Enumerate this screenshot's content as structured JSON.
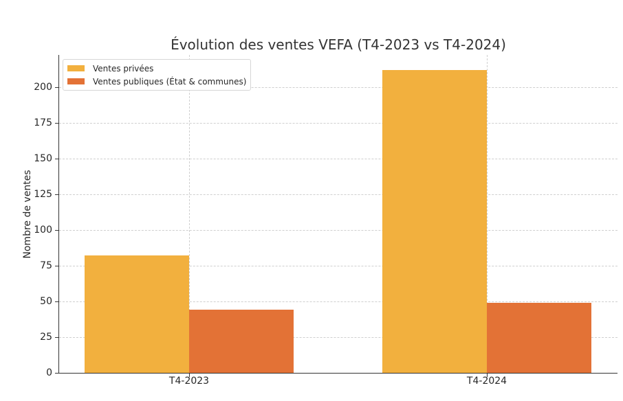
{
  "chart_data": {
    "type": "bar",
    "title": "Évolution des ventes VEFA (T4-2023 vs T4-2024)",
    "xlabel": "",
    "ylabel": "Nombre de ventes",
    "categories": [
      "T4-2023",
      "T4-2024"
    ],
    "series": [
      {
        "name": "Ventes privées",
        "color": "#f2b03e",
        "values": [
          82,
          212
        ]
      },
      {
        "name": "Ventes publiques (État & communes)",
        "color": "#e37236",
        "values": [
          44,
          49
        ]
      }
    ],
    "ylim": [
      0,
      222
    ],
    "yticks": [
      0,
      25,
      50,
      75,
      100,
      125,
      150,
      175,
      200
    ],
    "grid": true,
    "legend_position": "upper left"
  }
}
